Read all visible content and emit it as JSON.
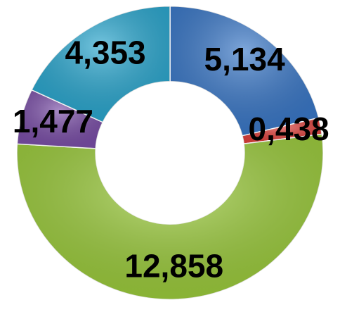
{
  "chart_data": {
    "type": "donut",
    "categories": [
      null,
      null,
      null,
      null,
      null
    ],
    "values": [
      5.134,
      0.438,
      12.858,
      1.477,
      4.353
    ],
    "value_labels": [
      "5,134",
      "0,438",
      "12,858",
      "1,477",
      "4,353"
    ],
    "colors": [
      "#3a78c8",
      "#e0413c",
      "#9ccc3c",
      "#7b4fa8",
      "#2aa7cf"
    ]
  }
}
